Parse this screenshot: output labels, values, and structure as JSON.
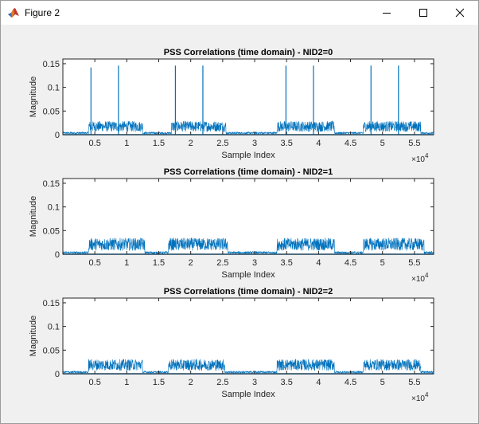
{
  "window": {
    "title": "Figure 2",
    "icons": {
      "app": "matlab-figure-icon",
      "minimize": "minimize-icon",
      "maximize": "maximize-icon",
      "close": "close-icon"
    }
  },
  "chart_data": [
    {
      "type": "line",
      "title": "PSS Correlations (time domain) - NID2=0",
      "xlabel": "Sample Index",
      "ylabel": "Magnitude",
      "x_exponent_label": "×10",
      "x_exponent": "4",
      "xlim": [
        0,
        58000
      ],
      "ylim": [
        0,
        0.16
      ],
      "x_ticks": [
        5000,
        10000,
        15000,
        20000,
        25000,
        30000,
        35000,
        40000,
        45000,
        50000,
        55000
      ],
      "x_tick_labels": [
        "0.5",
        "1",
        "1.5",
        "2",
        "2.5",
        "3",
        "3.5",
        "4",
        "4.5",
        "5",
        "5.5"
      ],
      "y_ticks": [
        0,
        0.05,
        0.1,
        0.15
      ],
      "y_tick_labels": [
        "0",
        "0.05",
        "0.1",
        "0.15"
      ],
      "color": "#0072bd",
      "noise_floor": 0.005,
      "bursts": [
        {
          "x": [
            4000,
            12500
          ],
          "level": 0.025
        },
        {
          "x": [
            17000,
            25500
          ],
          "level": 0.025
        },
        {
          "x": [
            33500,
            42500
          ],
          "level": 0.025
        },
        {
          "x": [
            47000,
            56000
          ],
          "level": 0.025
        }
      ],
      "peaks": [
        {
          "x": 4400,
          "y": 0.142
        },
        {
          "x": 8700,
          "y": 0.146
        },
        {
          "x": 17600,
          "y": 0.146
        },
        {
          "x": 21900,
          "y": 0.146
        },
        {
          "x": 34900,
          "y": 0.146
        },
        {
          "x": 39200,
          "y": 0.146
        },
        {
          "x": 48200,
          "y": 0.146
        },
        {
          "x": 52500,
          "y": 0.146
        }
      ]
    },
    {
      "type": "line",
      "title": "PSS Correlations (time domain) - NID2=1",
      "xlabel": "Sample Index",
      "ylabel": "Magnitude",
      "x_exponent_label": "×10",
      "x_exponent": "4",
      "xlim": [
        0,
        58000
      ],
      "ylim": [
        0,
        0.16
      ],
      "x_ticks": [
        5000,
        10000,
        15000,
        20000,
        25000,
        30000,
        35000,
        40000,
        45000,
        50000,
        55000
      ],
      "x_tick_labels": [
        "0.5",
        "1",
        "1.5",
        "2",
        "2.5",
        "3",
        "3.5",
        "4",
        "4.5",
        "5",
        "5.5"
      ],
      "y_ticks": [
        0,
        0.05,
        0.1,
        0.15
      ],
      "y_tick_labels": [
        "0",
        "0.05",
        "0.1",
        "0.15"
      ],
      "color": "#0072bd",
      "noise_floor": 0.005,
      "bursts": [
        {
          "x": [
            4000,
            12800
          ],
          "level": 0.03
        },
        {
          "x": [
            16500,
            25800
          ],
          "level": 0.03
        },
        {
          "x": [
            33500,
            42500
          ],
          "level": 0.03
        },
        {
          "x": [
            47000,
            56500
          ],
          "level": 0.03
        }
      ],
      "peaks": []
    },
    {
      "type": "line",
      "title": "PSS Correlations (time domain) - NID2=2",
      "xlabel": "Sample Index",
      "ylabel": "Magnitude",
      "x_exponent_label": "×10",
      "x_exponent": "4",
      "xlim": [
        0,
        58000
      ],
      "ylim": [
        0,
        0.16
      ],
      "x_ticks": [
        5000,
        10000,
        15000,
        20000,
        25000,
        30000,
        35000,
        40000,
        45000,
        50000,
        55000
      ],
      "x_tick_labels": [
        "0.5",
        "1",
        "1.5",
        "2",
        "2.5",
        "3",
        "3.5",
        "4",
        "4.5",
        "5",
        "5.5"
      ],
      "y_ticks": [
        0,
        0.05,
        0.1,
        0.15
      ],
      "y_tick_labels": [
        "0",
        "0.05",
        "0.1",
        "0.15"
      ],
      "color": "#0072bd",
      "noise_floor": 0.005,
      "bursts": [
        {
          "x": [
            4000,
            12500
          ],
          "level": 0.027
        },
        {
          "x": [
            16500,
            25300
          ],
          "level": 0.027
        },
        {
          "x": [
            33500,
            42500
          ],
          "level": 0.027
        },
        {
          "x": [
            47000,
            56000
          ],
          "level": 0.027
        }
      ],
      "peaks": []
    }
  ]
}
